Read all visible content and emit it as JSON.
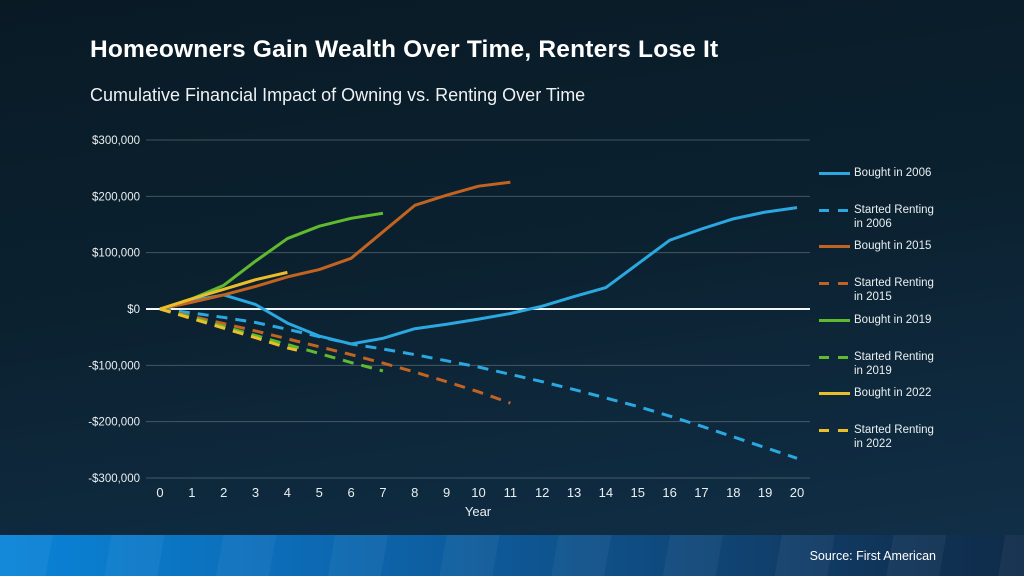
{
  "footer": {
    "source": "Source: First American"
  },
  "colors": {
    "background_top": "#091a25",
    "background_bottom": "#113049",
    "footer_blue": "#0a84d8",
    "footer_navy": "#0f2b49",
    "zero_line": "#f2f7f7",
    "gridline": "#8fa0a6",
    "axis_text": "#e9eff1"
  },
  "chart_data": {
    "type": "line",
    "title": "Homeowners Gain Wealth Over Time, Renters Lose It",
    "subtitle": "Cumulative Financial Impact of Owning vs. Renting Over Time",
    "xlabel": "Year",
    "ylabel": "",
    "grid": true,
    "legend_position": "right",
    "xlim": [
      0,
      20
    ],
    "ylim": [
      -300000,
      300000
    ],
    "x_ticks": [
      0,
      1,
      2,
      3,
      4,
      5,
      6,
      7,
      8,
      9,
      10,
      11,
      12,
      13,
      14,
      15,
      16,
      17,
      18,
      19,
      20
    ],
    "y_ticks": [
      {
        "value": 300000,
        "label": "$300,000"
      },
      {
        "value": 200000,
        "label": "$200,000"
      },
      {
        "value": 100000,
        "label": "$100,000"
      },
      {
        "value": 0,
        "label": "$0"
      },
      {
        "value": -100000,
        "label": "-$100,000"
      },
      {
        "value": -200000,
        "label": "-$200,000"
      },
      {
        "value": -300000,
        "label": "-$300,000"
      }
    ],
    "series": [
      {
        "name": "Bought in 2006",
        "color": "#2BA8E0",
        "style": "solid",
        "x": [
          0,
          1,
          2,
          3,
          4,
          5,
          6,
          7,
          8,
          9,
          10,
          11,
          12,
          13,
          14,
          15,
          16,
          17,
          18,
          19,
          20
        ],
        "y": [
          0,
          15000,
          25000,
          8000,
          -25000,
          -48000,
          -62000,
          -52000,
          -35000,
          -27000,
          -18000,
          -8000,
          5000,
          22000,
          38000,
          80000,
          122000,
          142000,
          160000,
          172000,
          180000
        ]
      },
      {
        "name": "Started Renting in 2006",
        "color": "#2BA8E0",
        "style": "dashed",
        "x": [
          0,
          1,
          2,
          3,
          4,
          5,
          6,
          7,
          8,
          9,
          10,
          11,
          12,
          13,
          14,
          15,
          16,
          17,
          18,
          19,
          20
        ],
        "y": [
          0,
          -7000,
          -15000,
          -24000,
          -36000,
          -49000,
          -62000,
          -71000,
          -81000,
          -92000,
          -103000,
          -116000,
          -129000,
          -143000,
          -158000,
          -173000,
          -190000,
          -208000,
          -227000,
          -246000,
          -265000
        ]
      },
      {
        "name": "Bought in 2015",
        "color": "#C36321",
        "style": "solid",
        "x": [
          0,
          1,
          2,
          3,
          4,
          5,
          6,
          7,
          8,
          9,
          10,
          11
        ],
        "y": [
          0,
          12000,
          25000,
          40000,
          57000,
          70000,
          90000,
          137000,
          184000,
          202000,
          218000,
          225000
        ]
      },
      {
        "name": "Started Renting in 2015",
        "color": "#C36321",
        "style": "dashed",
        "x": [
          0,
          1,
          2,
          3,
          4,
          5,
          6,
          7,
          8,
          9,
          10,
          11
        ],
        "y": [
          0,
          -13000,
          -26000,
          -39000,
          -53000,
          -67000,
          -81000,
          -96000,
          -112000,
          -129000,
          -147000,
          -167000
        ]
      },
      {
        "name": "Bought in 2019",
        "color": "#5FBA2F",
        "style": "solid",
        "x": [
          0,
          1,
          2,
          3,
          4,
          5,
          6,
          7
        ],
        "y": [
          0,
          18000,
          42000,
          85000,
          125000,
          147000,
          161000,
          170000
        ]
      },
      {
        "name": "Started Renting in 2019",
        "color": "#5FBA2F",
        "style": "dashed",
        "x": [
          0,
          1,
          2,
          3,
          4,
          5,
          6,
          7
        ],
        "y": [
          0,
          -15000,
          -31000,
          -47000,
          -63000,
          -79000,
          -95000,
          -110000
        ]
      },
      {
        "name": "Bought in 2022",
        "color": "#EDBE2B",
        "style": "solid",
        "x": [
          0,
          1,
          2,
          3,
          4
        ],
        "y": [
          0,
          18000,
          35000,
          52000,
          65000
        ]
      },
      {
        "name": "Started Renting in 2022",
        "color": "#EDBE2B",
        "style": "dashed",
        "x": [
          0,
          1,
          2,
          3,
          4,
          4.3
        ],
        "y": [
          0,
          -17000,
          -34000,
          -51000,
          -69000,
          -73000
        ]
      }
    ]
  }
}
